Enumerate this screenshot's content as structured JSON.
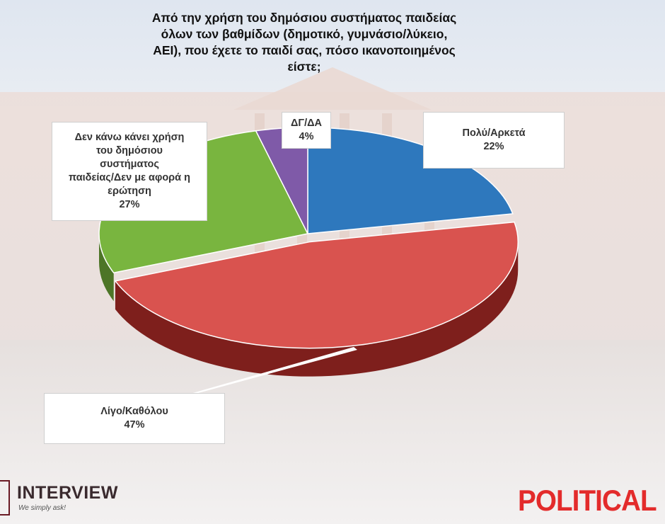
{
  "chart_data": {
    "type": "pie",
    "title": "Από την χρήση του δημόσιου συστήματος παιδείας όλων των βαθμίδων (δημοτικό, γυμνάσιο/λύκειο, ΑΕΙ), που έχετε το παιδί σας, πόσο ικανοποιημένος είστε;",
    "title_lines": [
      "Από την χρήση του δημόσιου συστήματος παιδείας",
      "όλων των βαθμίδων (δημοτικό, γυμνάσιο/λύκειο,",
      "ΑΕΙ), που έχετε το παιδί σας, πόσο ικανοποιημένος",
      "είστε;"
    ],
    "slices": [
      {
        "label": "Πολύ/Αρκετά",
        "label_lines": [
          "Πολύ/Αρκετά"
        ],
        "value": 22,
        "display": "22%",
        "color": "#2e78bd",
        "dark": "#1d4f7e"
      },
      {
        "label": "Λίγο/Καθόλου",
        "label_lines": [
          "Λίγο/Καθόλου"
        ],
        "value": 47,
        "display": "47%",
        "color": "#d9534f",
        "dark": "#7e1f1c"
      },
      {
        "label": "Δεν κάνω κάνει χρήση του δημόσιου συστήματος παιδείας/Δεν με αφορά η ερώτηση",
        "label_lines": [
          "Δεν κάνω κάνει χρήση",
          "του δημόσιου",
          "συστήματος",
          "παιδείας/Δεν με αφορά η",
          "ερώτηση"
        ],
        "value": 27,
        "display": "27%",
        "color": "#79b53f",
        "dark": "#4d7527"
      },
      {
        "label": "ΔΓ/ΔΑ",
        "label_lines": [
          "ΔΓ/ΔΑ"
        ],
        "value": 4,
        "display": "4%",
        "color": "#7f5aa8",
        "dark": "#54396f"
      }
    ],
    "legend": "none"
  },
  "branding": {
    "left_logo": "INTERVIEW",
    "left_tagline": "We simply ask!",
    "right_logo": "POLITICAL"
  }
}
